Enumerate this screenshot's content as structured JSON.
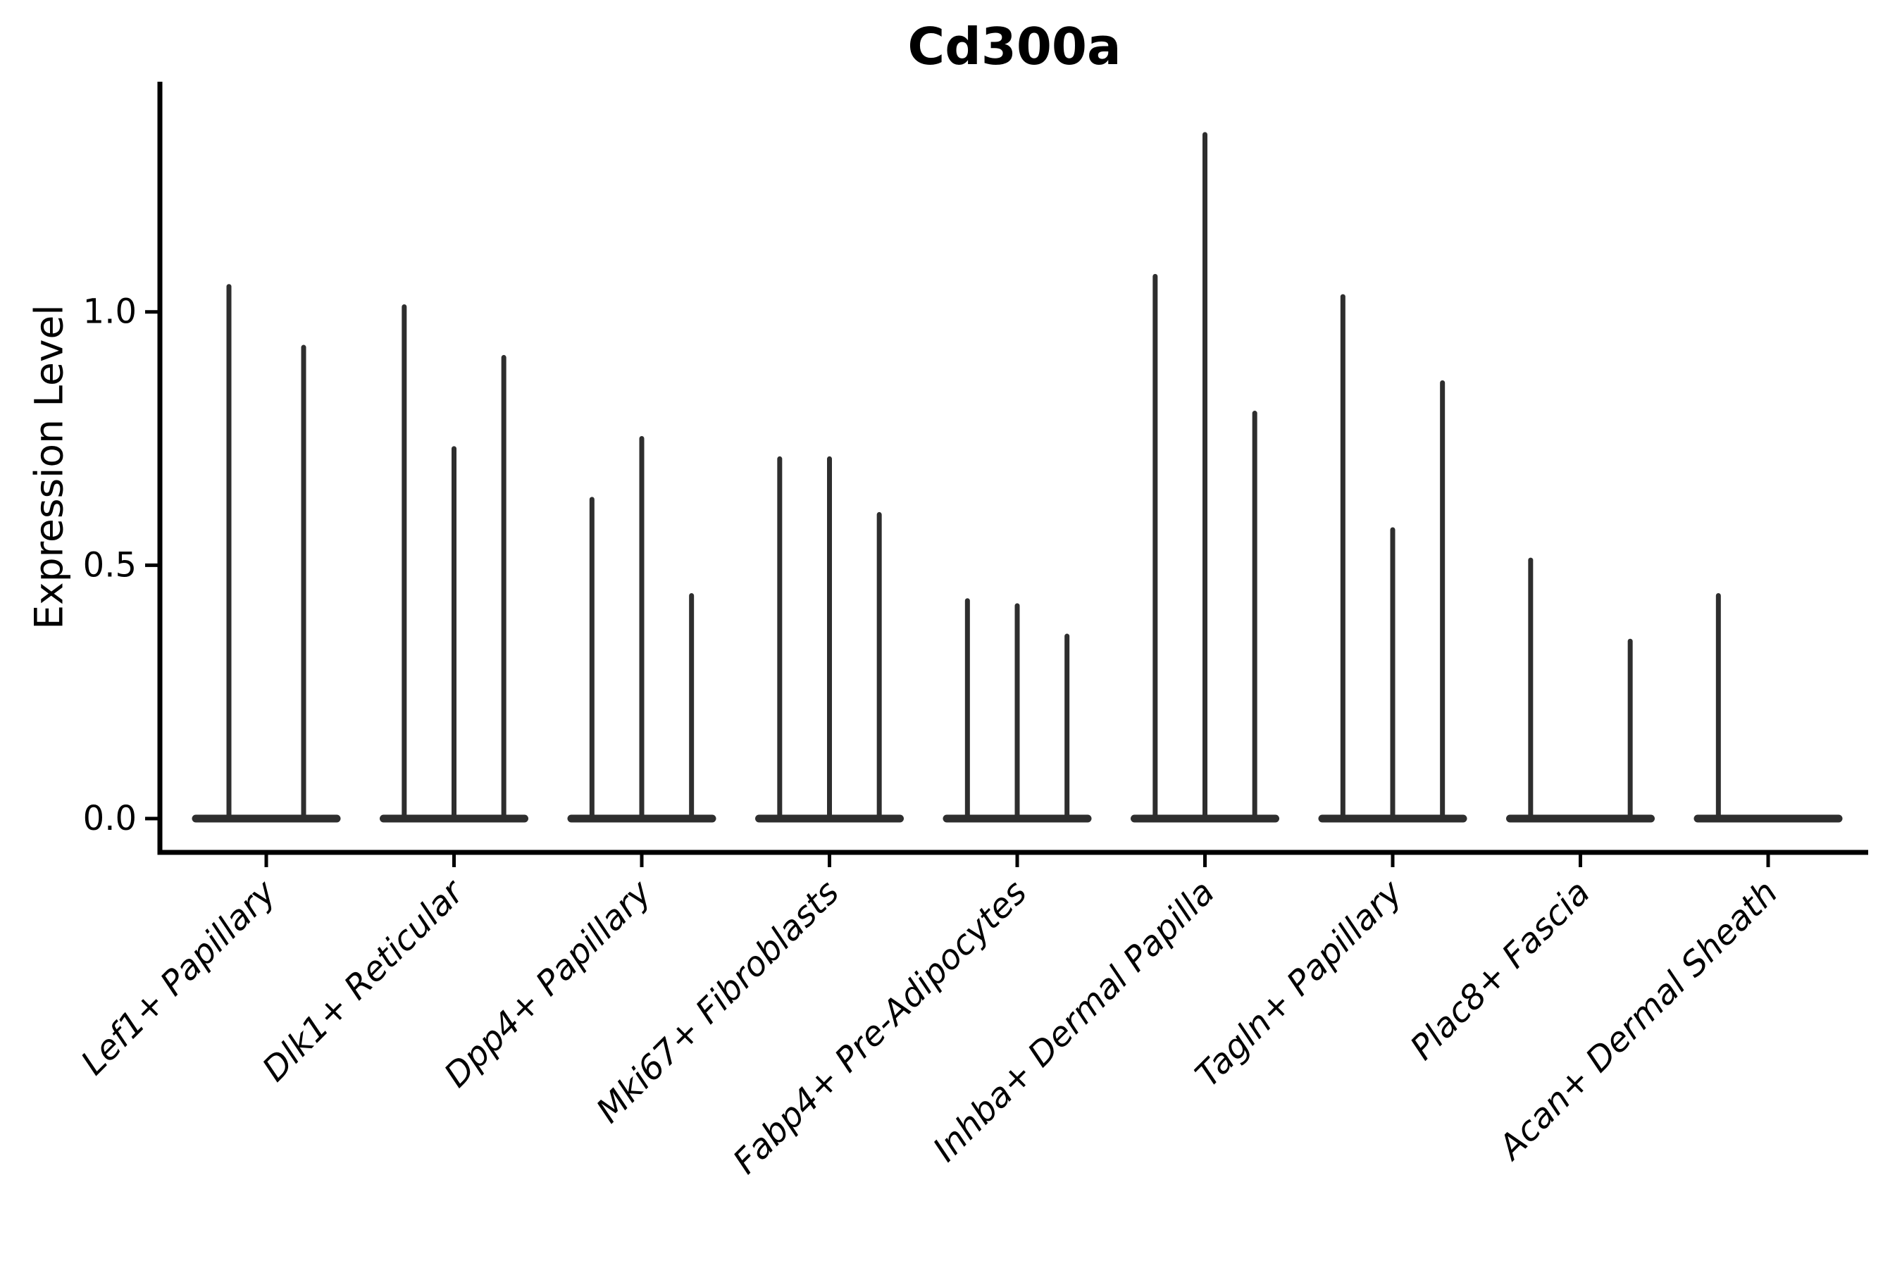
{
  "title": "Cd300a",
  "y_axis": {
    "label": "Expression Level",
    "ticks": [
      {
        "label": "0.0",
        "value": 0.0
      },
      {
        "label": "0.5",
        "value": 0.5
      },
      {
        "label": "1.0",
        "value": 1.0
      }
    ]
  },
  "chart_data": {
    "type": "violin",
    "title": "Cd300a",
    "xlabel": "",
    "ylabel": "Expression Level",
    "ylim": [
      0,
      1.45
    ],
    "grid": false,
    "legend": false,
    "background": "#ffffff",
    "note": "Collapsed violins: each violin renders as a wide flat base at 0 expression with a thin vertical spike up to the max expression value; null means no spike in that slot.",
    "categories": [
      "Lef1+ Papillary",
      "Dlk1+ Reticular",
      "Dpp4+ Papillary",
      "Mki67+ Fibroblasts",
      "Fabp4+ Pre-Adipocytes",
      "Inhba+ Dermal Papilla",
      "Tagln+ Papillary",
      "Plac8+ Fascia",
      "Acan+ Dermal Sheath"
    ],
    "groups": [
      {
        "label": "Lef1+ Papillary",
        "violin_max_expression": [
          1.05,
          0.93
        ]
      },
      {
        "label": "Dlk1+ Reticular",
        "violin_max_expression": [
          1.01,
          0.73,
          0.91
        ]
      },
      {
        "label": "Dpp4+ Papillary",
        "violin_max_expression": [
          0.63,
          0.75,
          0.44
        ]
      },
      {
        "label": "Mki67+ Fibroblasts",
        "violin_max_expression": [
          0.71,
          0.71,
          0.6
        ]
      },
      {
        "label": "Fabp4+ Pre-Adipocytes",
        "violin_max_expression": [
          0.43,
          0.42,
          0.36
        ]
      },
      {
        "label": "Inhba+ Dermal Papilla",
        "violin_max_expression": [
          1.07,
          1.35,
          0.8
        ]
      },
      {
        "label": "Tagln+ Papillary",
        "violin_max_expression": [
          1.03,
          0.57,
          0.86
        ]
      },
      {
        "label": "Plac8+ Fascia",
        "violin_max_expression": [
          0.51,
          null,
          0.35
        ]
      },
      {
        "label": "Acan+ Dermal Sheath",
        "violin_max_expression": [
          0.44,
          null,
          null
        ]
      }
    ]
  },
  "colors": {
    "violin_stroke": "#2e2e2e",
    "axis": "#000000",
    "text": "#000000",
    "background": "#ffffff"
  }
}
